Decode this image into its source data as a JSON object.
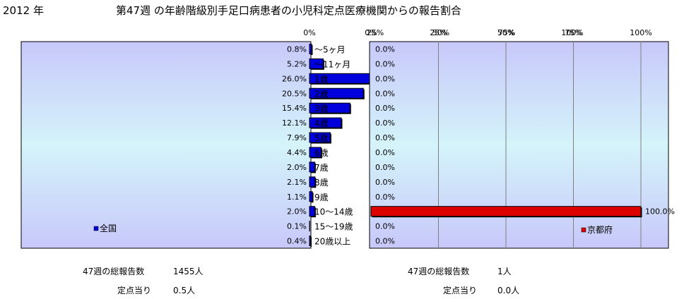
{
  "header": {
    "year": "2012 年",
    "title": "第47週 の年齢階級別手足口病患者の小児科定点医療機関からの報告割合"
  },
  "chart_data": {
    "type": "bar",
    "orientation": "horizontal",
    "categories": [
      "～5ヶ月",
      "～11ヶ月",
      "1歳",
      "2歳",
      "3歳",
      "4歳",
      "5歳",
      "6歳",
      "7歳",
      "8歳",
      "9歳",
      "10～14歳",
      "15～19歳",
      "20歳以上"
    ],
    "xlim": [
      0,
      100
    ],
    "x_ticks": [
      "0%",
      "25%",
      "50%",
      "75%",
      "100%"
    ],
    "grid": true,
    "series": [
      {
        "name": "全国",
        "side": "left",
        "color": "#0000dd",
        "values": [
          0.8,
          5.2,
          26.0,
          20.5,
          15.4,
          12.1,
          7.9,
          4.4,
          2.0,
          2.1,
          1.1,
          2.0,
          0.1,
          0.4
        ],
        "value_labels": [
          "0.8%",
          "5.2%",
          "26.0%",
          "20.5%",
          "15.4%",
          "12.1%",
          "7.9%",
          "4.4%",
          "2.0%",
          "2.1%",
          "1.1%",
          "2.0%",
          "0.1%",
          "0.4%"
        ],
        "legend_placement": "bottom-left"
      },
      {
        "name": "京都府",
        "side": "right",
        "color": "#dd0000",
        "values": [
          0,
          0,
          0,
          0,
          0,
          0,
          0,
          0,
          0,
          0,
          0,
          100.0,
          0,
          0
        ],
        "value_labels": [
          "0.0%",
          "0.0%",
          "0.0%",
          "0.0%",
          "0.0%",
          "0.0%",
          "0.0%",
          "0.0%",
          "0.0%",
          "0.0%",
          "0.0%",
          "100.0%",
          "0.0%",
          "0.0%"
        ],
        "legend_placement": "bottom-right"
      }
    ]
  },
  "stats": {
    "national": {
      "total_label": "47週の総報告数",
      "total_value": "1455人",
      "per_label": "定点当り",
      "per_value": "0.5人"
    },
    "kyoto": {
      "total_label": "47週の総報告数",
      "total_value": "1人",
      "per_label": "定点当り",
      "per_value": "0.0人"
    }
  },
  "colors": {
    "plot_bg_top": "#c8c8fa",
    "plot_bg_mid": "#d4f4fa",
    "plot_bg_bottom": "#c8c8fa",
    "grid": "#808080"
  }
}
